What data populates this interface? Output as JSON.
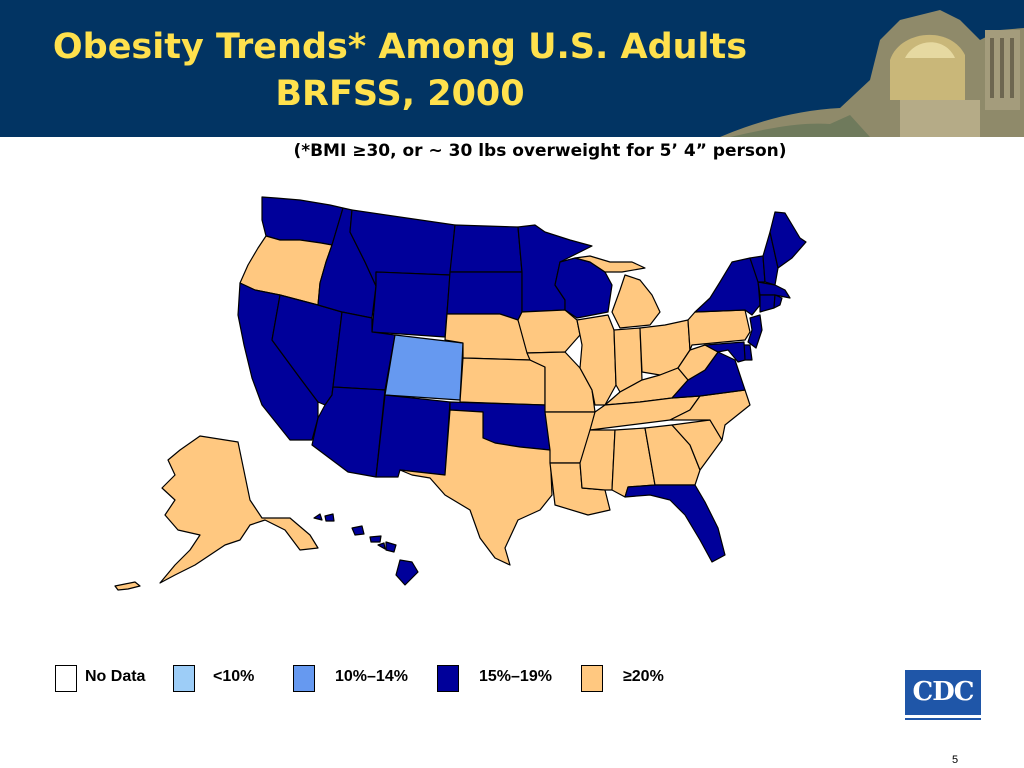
{
  "title": {
    "line1": "Obesity Trends* Among U.S. Adults",
    "line2": "BRFSS, 2000"
  },
  "subtitle": "(*BMI ≥30, or ~ 30 lbs overweight for 5’ 4” person)",
  "legend": [
    {
      "id": "no-data",
      "label": "No Data",
      "color": "#ffffff"
    },
    {
      "id": "lt10",
      "label": "<10%",
      "color": "#9dcdf7"
    },
    {
      "id": "10-14",
      "label": "10%–14%",
      "color": "#6699f0"
    },
    {
      "id": "15-19",
      "label": "15%–19%",
      "color": "#00009a"
    },
    {
      "id": "ge20",
      "label": "≥20%",
      "color": "#ffc880"
    }
  ],
  "colors": {
    "header_bg": "#023463",
    "title": "#ffe14d",
    "no_data": "#ffffff",
    "lt10": "#9dcdf7",
    "b10_14": "#6699f0",
    "b15_19": "#00009a",
    "ge20": "#ffc880"
  },
  "map": {
    "states": {
      "WA": "15-19",
      "OR": "ge20",
      "CA": "15-19",
      "NV": "15-19",
      "ID": "15-19",
      "MT": "15-19",
      "WY": "15-19",
      "UT": "15-19",
      "AZ": "15-19",
      "CO": "10-14",
      "NM": "15-19",
      "ND": "15-19",
      "SD": "15-19",
      "NE": "ge20",
      "KS": "ge20",
      "OK": "15-19",
      "TX": "ge20",
      "MN": "15-19",
      "IA": "ge20",
      "MO": "ge20",
      "AR": "ge20",
      "LA": "ge20",
      "WI": "15-19",
      "IL": "ge20",
      "MI": "ge20",
      "IN": "ge20",
      "OH": "ge20",
      "KY": "ge20",
      "TN": "ge20",
      "MS": "ge20",
      "AL": "ge20",
      "GA": "ge20",
      "FL": "15-19",
      "SC": "ge20",
      "NC": "ge20",
      "VA": "15-19",
      "WV": "ge20",
      "PA": "ge20",
      "NY": "15-19",
      "VT": "15-19",
      "NH": "15-19",
      "ME": "15-19",
      "MA": "15-19",
      "CT": "15-19",
      "RI": "15-19",
      "NJ": "15-19",
      "DE": "15-19",
      "MD": "15-19",
      "AK": "ge20",
      "HI": "15-19"
    }
  },
  "cdc_logo": "CDC",
  "page_number": "5"
}
